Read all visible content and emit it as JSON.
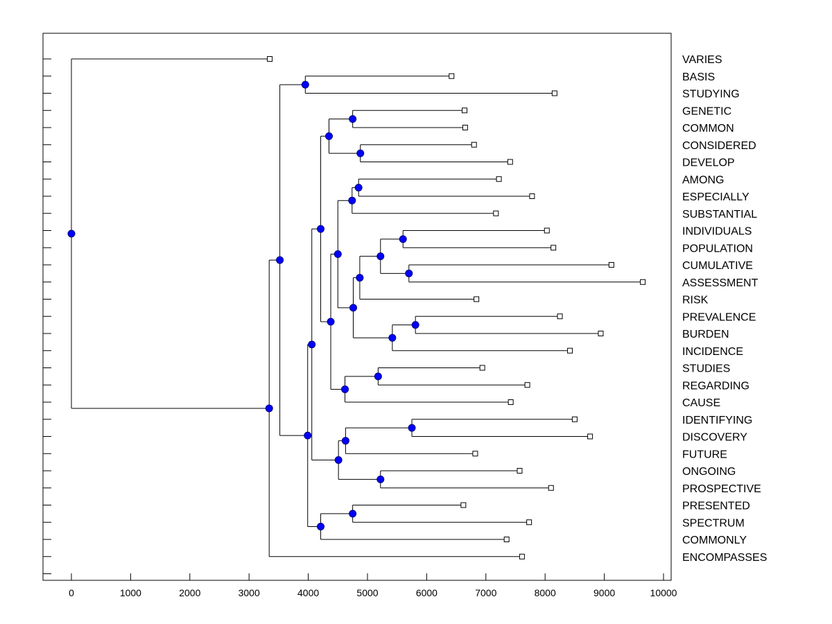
{
  "chart_data": {
    "type": "dendrogram",
    "title": "",
    "xlabel": "",
    "ylabel": "",
    "xlim": [
      -450,
      10100
    ],
    "x_ticks": [
      0,
      1000,
      2000,
      3000,
      4000,
      5000,
      6000,
      7000,
      8000,
      9000,
      10000
    ],
    "x_tick_labels": [
      "0",
      "1000",
      "2000",
      "3000",
      "4000",
      "5000",
      "6000",
      "7000",
      "8000",
      "9000",
      "10000"
    ],
    "leaves": [
      {
        "label": "VARIES",
        "x": 3350
      },
      {
        "label": "BASIS",
        "x": 6420
      },
      {
        "label": "STUDYING",
        "x": 8160
      },
      {
        "label": "GENETIC",
        "x": 6640
      },
      {
        "label": "COMMON",
        "x": 6650
      },
      {
        "label": "CONSIDERED",
        "x": 6800
      },
      {
        "label": "DEVELOP",
        "x": 7410
      },
      {
        "label": "AMONG",
        "x": 7220
      },
      {
        "label": "ESPECIALLY",
        "x": 7780
      },
      {
        "label": "SUBSTANTIAL",
        "x": 7170
      },
      {
        "label": "INDIVIDUALS",
        "x": 8030
      },
      {
        "label": "POPULATION",
        "x": 8140
      },
      {
        "label": "CUMULATIVE",
        "x": 9120
      },
      {
        "label": "ASSESSMENT",
        "x": 9650
      },
      {
        "label": "RISK",
        "x": 6840
      },
      {
        "label": "PREVALENCE",
        "x": 8250
      },
      {
        "label": "BURDEN",
        "x": 8940
      },
      {
        "label": "INCIDENCE",
        "x": 8420
      },
      {
        "label": "STUDIES",
        "x": 6940
      },
      {
        "label": "REGARDING",
        "x": 7700
      },
      {
        "label": "CAUSE",
        "x": 7420
      },
      {
        "label": "IDENTIFYING",
        "x": 8500
      },
      {
        "label": "DISCOVERY",
        "x": 8760
      },
      {
        "label": "FUTURE",
        "x": 6820
      },
      {
        "label": "ONGOING",
        "x": 7570
      },
      {
        "label": "PROSPECTIVE",
        "x": 8100
      },
      {
        "label": "PRESENTED",
        "x": 6620
      },
      {
        "label": "SPECTRUM",
        "x": 7730
      },
      {
        "label": "COMMONLY",
        "x": 7350
      },
      {
        "label": "ENCOMPASSES",
        "x": 7610
      }
    ],
    "merges": [
      {
        "id": "n1",
        "x": 3950,
        "children": [
          "L1",
          "L2"
        ]
      },
      {
        "id": "n2",
        "x": 4750,
        "children": [
          "L3",
          "L4"
        ]
      },
      {
        "id": "n3",
        "x": 4880,
        "children": [
          "L5",
          "L6"
        ]
      },
      {
        "id": "n4",
        "x": 4350,
        "children": [
          "n2",
          "n3"
        ]
      },
      {
        "id": "n5",
        "x": 4850,
        "children": [
          "L7",
          "L8"
        ]
      },
      {
        "id": "n6",
        "x": 4740,
        "children": [
          "n5",
          "L9"
        ]
      },
      {
        "id": "n7",
        "x": 5600,
        "children": [
          "L10",
          "L11"
        ]
      },
      {
        "id": "n8",
        "x": 5700,
        "children": [
          "L12",
          "L13"
        ]
      },
      {
        "id": "n9",
        "x": 5220,
        "children": [
          "n7",
          "n8"
        ]
      },
      {
        "id": "n10",
        "x": 4870,
        "children": [
          "n9",
          "L14"
        ]
      },
      {
        "id": "n11",
        "x": 5810,
        "children": [
          "L15",
          "L16"
        ]
      },
      {
        "id": "n12",
        "x": 5420,
        "children": [
          "n11",
          "L17"
        ]
      },
      {
        "id": "n13",
        "x": 4760,
        "children": [
          "n10",
          "n12"
        ]
      },
      {
        "id": "n14",
        "x": 4500,
        "children": [
          "n6",
          "n13"
        ]
      },
      {
        "id": "n15",
        "x": 5180,
        "children": [
          "L18",
          "L19"
        ]
      },
      {
        "id": "n16",
        "x": 4620,
        "children": [
          "n15",
          "L20"
        ]
      },
      {
        "id": "n17",
        "x": 4380,
        "children": [
          "n14",
          "n16"
        ]
      },
      {
        "id": "n18",
        "x": 4210,
        "children": [
          "n4",
          "n17"
        ]
      },
      {
        "id": "n19",
        "x": 5750,
        "children": [
          "L21",
          "L22"
        ]
      },
      {
        "id": "n20",
        "x": 4630,
        "children": [
          "n19",
          "L23"
        ]
      },
      {
        "id": "n21",
        "x": 5220,
        "children": [
          "L24",
          "L25"
        ]
      },
      {
        "id": "n22",
        "x": 4510,
        "children": [
          "n20",
          "n21"
        ]
      },
      {
        "id": "n23",
        "x": 4060,
        "children": [
          "n18",
          "n22"
        ]
      },
      {
        "id": "n24",
        "x": 4750,
        "children": [
          "L26",
          "L27"
        ]
      },
      {
        "id": "n25",
        "x": 4210,
        "children": [
          "n24",
          "L28"
        ]
      },
      {
        "id": "n26",
        "x": 3990,
        "children": [
          "n23",
          "n25"
        ]
      },
      {
        "id": "n27",
        "x": 3520,
        "children": [
          "n1",
          "n26"
        ]
      },
      {
        "id": "n28",
        "x": 3340,
        "children": [
          "n27",
          "L29"
        ]
      },
      {
        "id": "n29",
        "x": 0,
        "children": [
          "L0",
          "n28"
        ]
      }
    ],
    "colors": {
      "node_fill": "#0000ff",
      "node_stroke": "#00007a",
      "leaf_fill": "#ffffff",
      "line": "#000000"
    }
  }
}
